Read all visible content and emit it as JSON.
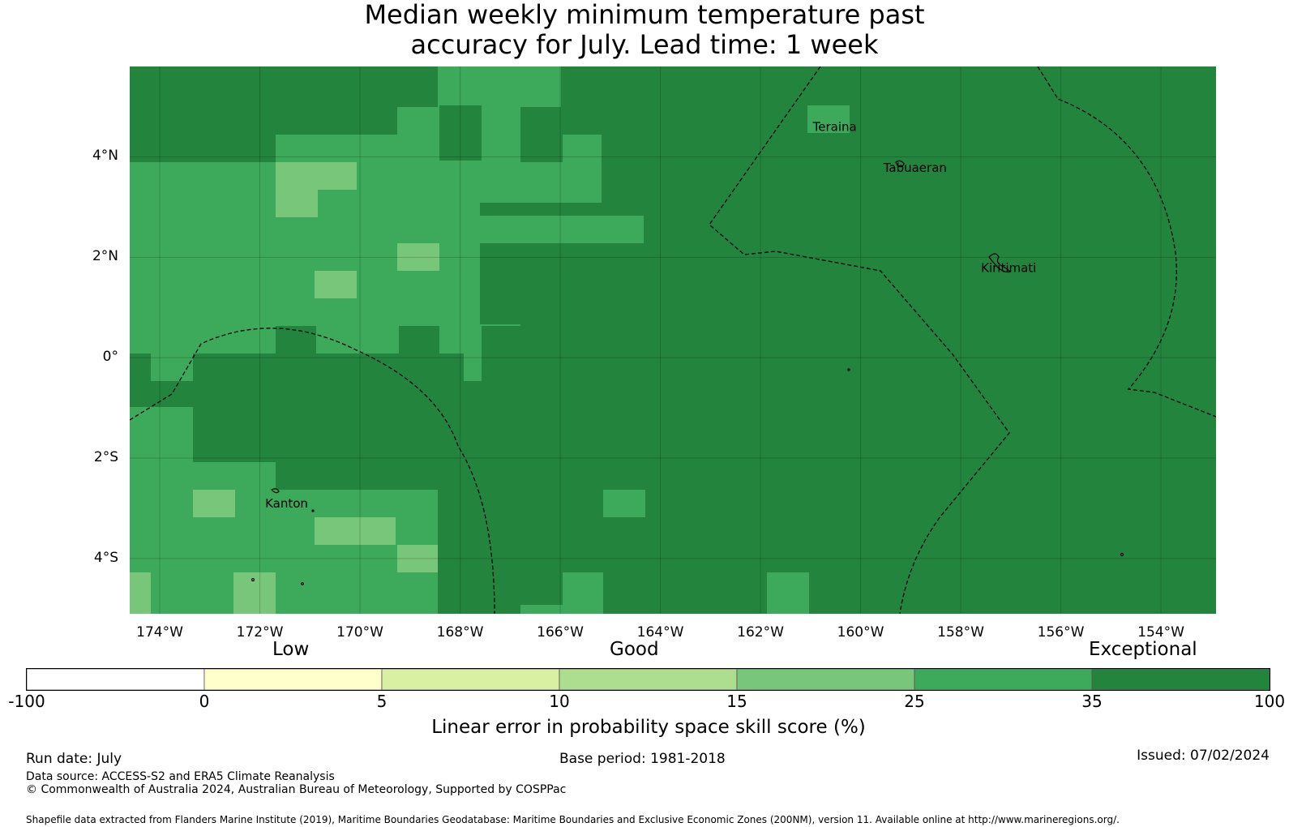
{
  "title": {
    "line1": "Median weekly minimum temperature past",
    "line2": "accuracy for July. Lead time: 1 week"
  },
  "map": {
    "lon_range": [
      -174.6,
      -152.9
    ],
    "lat_range": [
      -5.1,
      5.8
    ],
    "x_ticks": [
      {
        "lon": -174,
        "label": "174°W"
      },
      {
        "lon": -172,
        "label": "172°W"
      },
      {
        "lon": -170,
        "label": "170°W"
      },
      {
        "lon": -168,
        "label": "168°W"
      },
      {
        "lon": -166,
        "label": "166°W"
      },
      {
        "lon": -164,
        "label": "164°W"
      },
      {
        "lon": -162,
        "label": "162°W"
      },
      {
        "lon": -160,
        "label": "160°W"
      },
      {
        "lon": -158,
        "label": "158°W"
      },
      {
        "lon": -156,
        "label": "156°W"
      },
      {
        "lon": -154,
        "label": "154°W"
      }
    ],
    "y_ticks": [
      {
        "lat": 4,
        "label": "4°N"
      },
      {
        "lat": 2,
        "label": "2°N"
      },
      {
        "lat": 0,
        "label": "0°"
      },
      {
        "lat": -2,
        "label": "2°S"
      },
      {
        "lat": -4,
        "label": "4°S"
      }
    ],
    "places": [
      {
        "name": "Teraina",
        "lon": -160.76,
        "lat": 4.68
      },
      {
        "name": "Tabuaeran",
        "lon": -159.35,
        "lat": 3.86
      },
      {
        "name": "Kiritimati",
        "lon": -157.4,
        "lat": 1.87
      },
      {
        "name": "Kanton",
        "lon": -171.7,
        "lat": -2.82
      }
    ],
    "grid_note": "skill score class per 0.83° cell"
  },
  "colors": {
    "c35": "#23843e",
    "c25": "#3da95a",
    "c15": "#78c679",
    "c10": "#addd8e",
    "c5": "#d9f0a3",
    "c0": "#ffffcc",
    "cneg": "#ffffff"
  },
  "categories": {
    "low": "Low",
    "good": "Good",
    "exceptional": "Exceptional"
  },
  "colorbar": {
    "ticks": [
      "-100",
      "0",
      "5",
      "10",
      "15",
      "25",
      "35",
      "100"
    ],
    "colors": [
      "#ffffff",
      "#ffffcc",
      "#d9f0a3",
      "#addd8e",
      "#78c679",
      "#3da95a",
      "#23843e"
    ],
    "label": "Linear error in probability space skill score (%)"
  },
  "footer": {
    "run_date": "Run date: July",
    "base_period": "Base period: 1981-2018",
    "issued": "Issued: 07/02/2024",
    "data_source": "Data source: ACCESS-S2 and ERA5 Climate Reanalysis",
    "copyright": "© Commonwealth of Australia 2024, Australian Bureau of Meteorology, Supported by COSPPac",
    "shapefile": "Shapefile data extracted from Flanders Marine Institute (2019), Maritime Boundaries Geodatabase: Maritime Boundaries and Exclusive Economic Zones (200NM), version 11. Available online at http://www.marineregions.org/."
  }
}
